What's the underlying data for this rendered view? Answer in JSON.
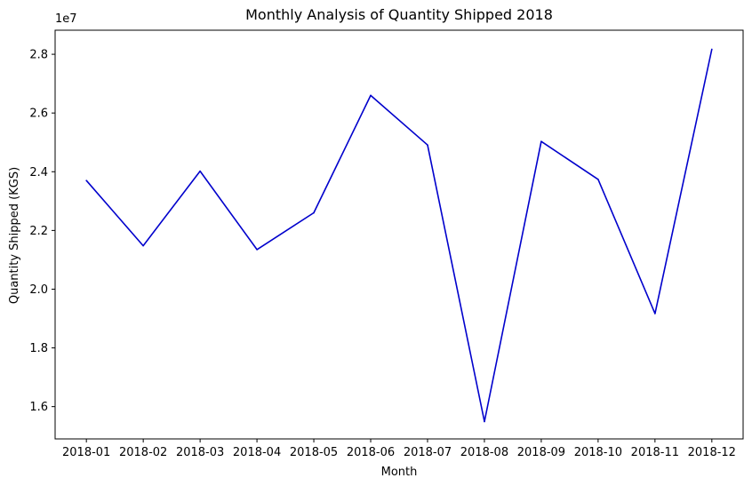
{
  "chart_data": {
    "type": "line",
    "title": "Monthly Analysis of Quantity Shipped 2018",
    "xlabel": "Month",
    "ylabel": "Quantity Shipped (KGS)",
    "y_offset_label": "1e7",
    "categories": [
      "2018-01",
      "2018-02",
      "2018-03",
      "2018-04",
      "2018-05",
      "2018-06",
      "2018-07",
      "2018-08",
      "2018-09",
      "2018-10",
      "2018-11",
      "2018-12"
    ],
    "series": [
      {
        "color": "#0000cc",
        "values": [
          23700000,
          21480000,
          24020000,
          21350000,
          22600000,
          26600000,
          24910000,
          15490000,
          25030000,
          23740000,
          19170000,
          28170000
        ]
      }
    ],
    "ylim": [
      14900000,
      28820000
    ],
    "yticks": [
      16000000,
      18000000,
      20000000,
      22000000,
      24000000,
      26000000,
      28000000
    ],
    "ytick_labels": [
      "1.6",
      "1.8",
      "2.0",
      "2.2",
      "2.4",
      "2.6",
      "2.8"
    ],
    "grid": false,
    "legend": "none"
  }
}
